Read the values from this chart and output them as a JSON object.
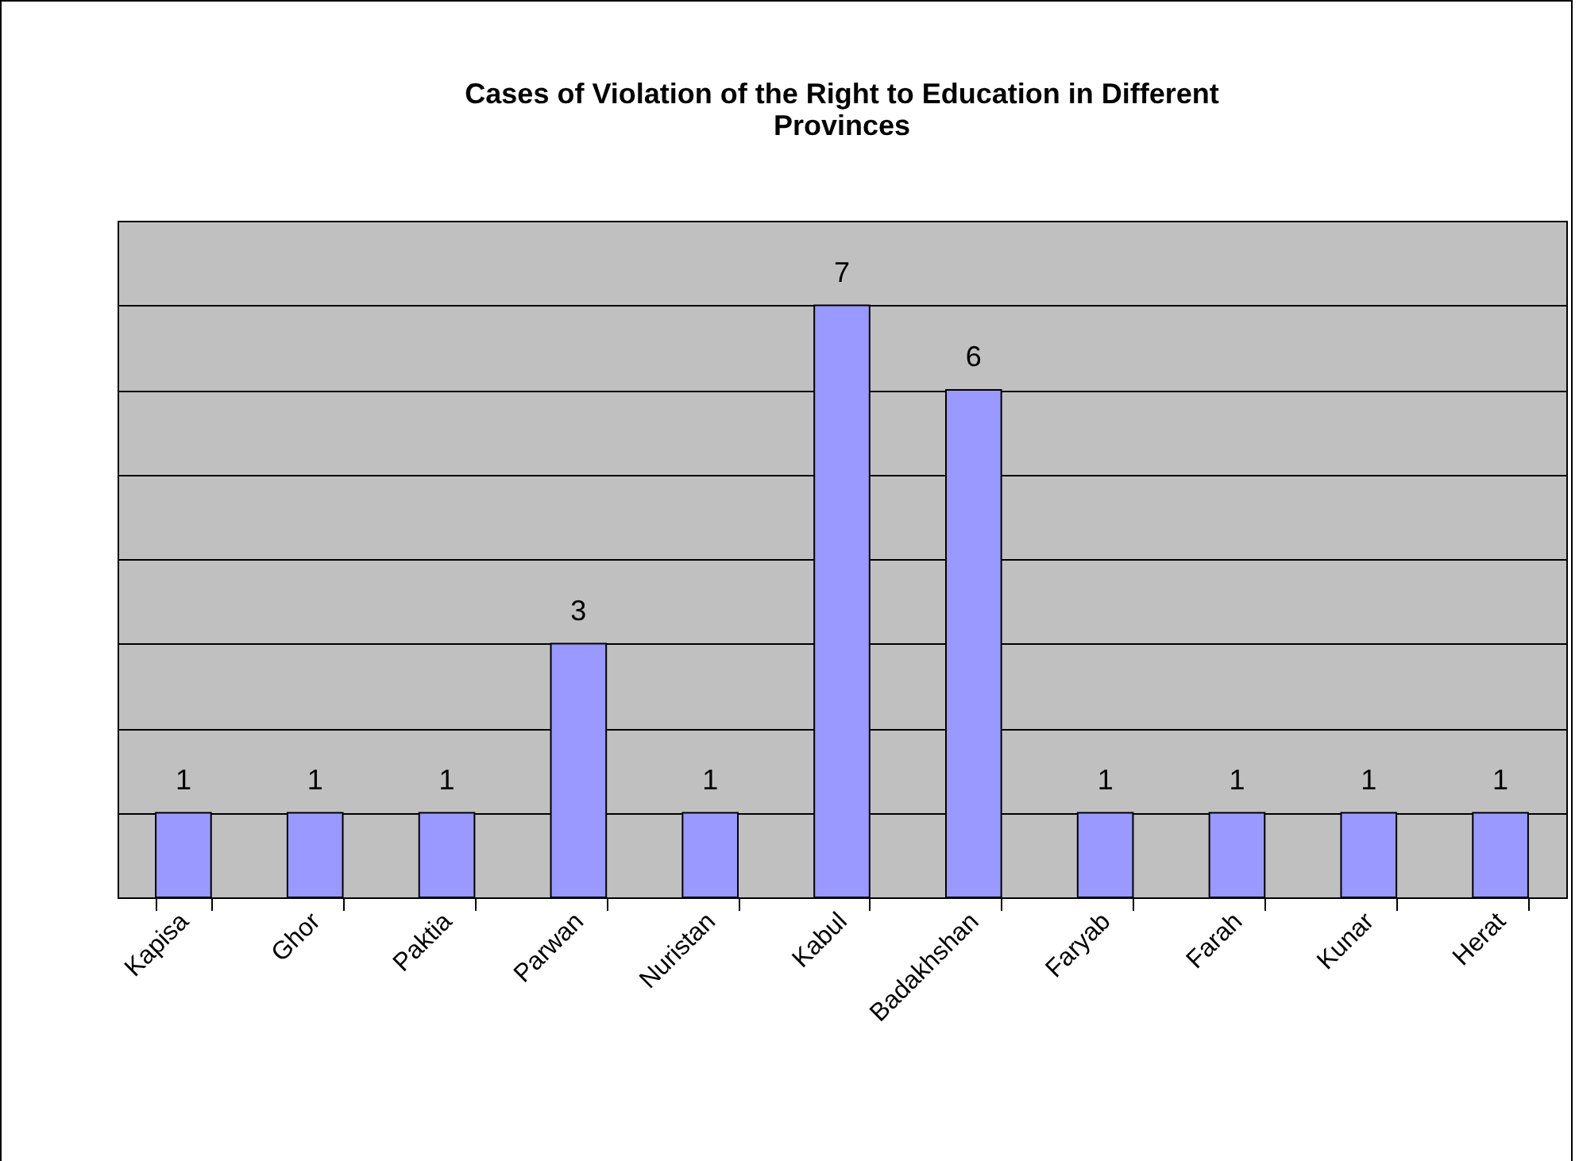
{
  "chart_data": {
    "type": "bar",
    "title": "Cases of Violation of the Right to Education in Different Provinces",
    "categories": [
      "Kapisa",
      "Ghor",
      "Paktia",
      "Parwan",
      "Nuristan",
      "Kabul",
      "Badakhshan",
      "Faryab",
      "Farah",
      "Kunar",
      "Herat"
    ],
    "values": [
      1,
      1,
      1,
      3,
      1,
      7,
      6,
      1,
      1,
      1,
      1
    ],
    "color": "#9999ff",
    "ylim": [
      0,
      8
    ],
    "yticks": [
      {
        "value": 0,
        "label": null
      },
      {
        "value": 1,
        "label": null
      },
      {
        "value": 2,
        "label": null
      },
      {
        "value": 3,
        "label": null
      },
      {
        "value": 4,
        "label": null
      },
      {
        "value": 5,
        "label": null
      },
      {
        "value": 6,
        "label": null
      },
      {
        "value": 7,
        "label": null
      },
      {
        "value": 8,
        "label": null
      }
    ],
    "tick_labels": "x",
    "grid": "y",
    "data_labels": true
  }
}
